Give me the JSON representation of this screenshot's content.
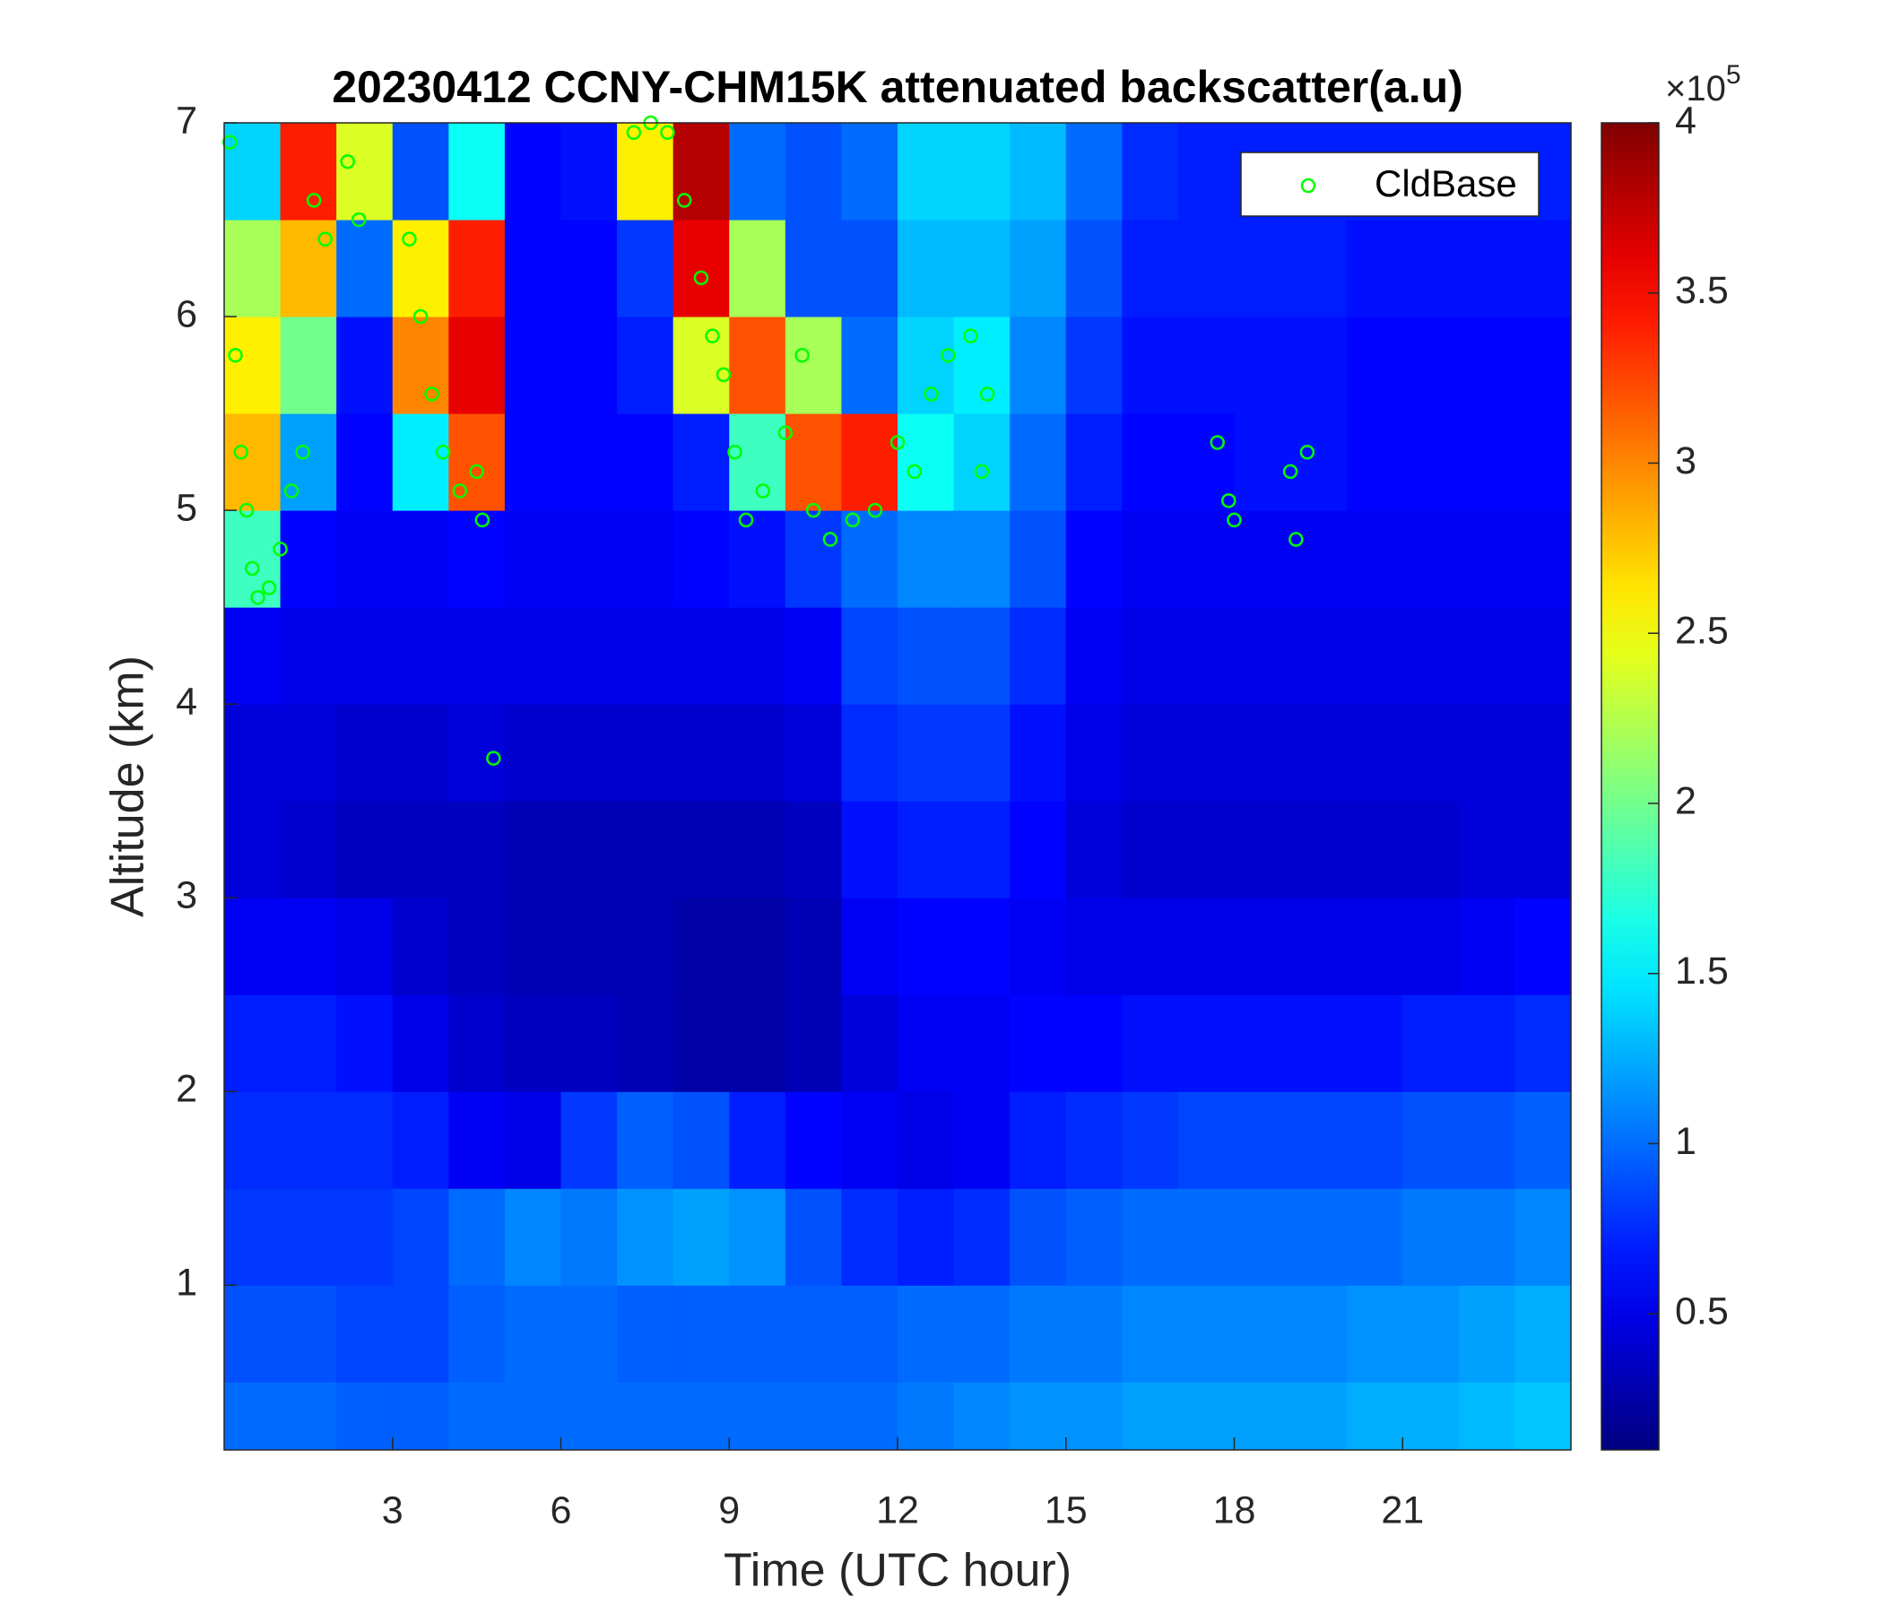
{
  "chart_data": {
    "type": "heatmap",
    "title": "20230412 CCNY-CHM15K attenuated backscatter(a.u)",
    "xlabel": "Time (UTC hour)",
    "ylabel": "Altitude (km)",
    "xlim": [
      0,
      24
    ],
    "ylim": [
      0.15,
      7
    ],
    "xticks": [
      3,
      6,
      9,
      12,
      15,
      18,
      21
    ],
    "yticks": [
      1,
      2,
      3,
      4,
      5,
      6,
      7
    ],
    "colormap": "jet",
    "clim": [
      0.1,
      4
    ],
    "cticks": [
      0.5,
      1,
      1.5,
      2,
      2.5,
      3,
      3.5,
      4
    ],
    "colorbar_multiplier": "×10",
    "colorbar_exponent": "5",
    "legend": "top-right",
    "xbins": [
      0,
      1,
      2,
      3,
      4,
      5,
      6,
      7,
      8,
      9,
      10,
      11,
      12,
      13,
      14,
      15,
      16,
      17,
      18,
      19,
      20,
      21,
      22,
      23,
      24
    ],
    "ybins": [
      0.15,
      0.5,
      1,
      1.5,
      2,
      2.5,
      3,
      3.5,
      4,
      4.5,
      5,
      5.5,
      6,
      6.5,
      7
    ],
    "z": [
      [
        1.0,
        1.0,
        0.95,
        0.95,
        1.0,
        1.0,
        1.0,
        1.0,
        1.0,
        1.0,
        1.0,
        1.0,
        1.05,
        1.1,
        1.15,
        1.15,
        1.2,
        1.2,
        1.2,
        1.2,
        1.25,
        1.25,
        1.3,
        1.35
      ],
      [
        0.9,
        0.9,
        0.85,
        0.85,
        0.95,
        1.0,
        1.0,
        0.95,
        0.95,
        0.95,
        0.95,
        0.95,
        1.0,
        1.0,
        1.05,
        1.05,
        1.1,
        1.1,
        1.1,
        1.1,
        1.15,
        1.15,
        1.2,
        1.25
      ],
      [
        0.8,
        0.8,
        0.8,
        0.85,
        1.0,
        1.1,
        1.05,
        1.15,
        1.2,
        1.15,
        0.9,
        0.75,
        0.7,
        0.75,
        0.9,
        0.95,
        1.0,
        1.0,
        1.0,
        1.0,
        1.0,
        1.05,
        1.05,
        1.1
      ],
      [
        0.75,
        0.75,
        0.75,
        0.7,
        0.55,
        0.5,
        0.8,
        0.95,
        0.9,
        0.7,
        0.6,
        0.55,
        0.5,
        0.55,
        0.7,
        0.75,
        0.8,
        0.85,
        0.85,
        0.85,
        0.85,
        0.9,
        0.9,
        0.95
      ],
      [
        0.7,
        0.7,
        0.65,
        0.5,
        0.4,
        0.35,
        0.35,
        0.3,
        0.25,
        0.25,
        0.3,
        0.45,
        0.55,
        0.55,
        0.6,
        0.6,
        0.65,
        0.65,
        0.65,
        0.65,
        0.65,
        0.7,
        0.7,
        0.75
      ],
      [
        0.55,
        0.55,
        0.5,
        0.4,
        0.35,
        0.3,
        0.3,
        0.3,
        0.25,
        0.25,
        0.3,
        0.55,
        0.6,
        0.6,
        0.55,
        0.5,
        0.5,
        0.5,
        0.5,
        0.5,
        0.5,
        0.5,
        0.55,
        0.6
      ],
      [
        0.45,
        0.4,
        0.35,
        0.35,
        0.35,
        0.3,
        0.3,
        0.3,
        0.3,
        0.3,
        0.35,
        0.65,
        0.7,
        0.7,
        0.6,
        0.45,
        0.4,
        0.4,
        0.4,
        0.4,
        0.4,
        0.4,
        0.45,
        0.45
      ],
      [
        0.45,
        0.45,
        0.4,
        0.4,
        0.45,
        0.4,
        0.4,
        0.4,
        0.4,
        0.4,
        0.45,
        0.75,
        0.8,
        0.8,
        0.65,
        0.5,
        0.45,
        0.45,
        0.45,
        0.45,
        0.45,
        0.45,
        0.45,
        0.45
      ],
      [
        0.55,
        0.5,
        0.5,
        0.5,
        0.5,
        0.5,
        0.5,
        0.5,
        0.5,
        0.5,
        0.55,
        0.85,
        0.9,
        0.9,
        0.75,
        0.55,
        0.5,
        0.5,
        0.5,
        0.5,
        0.5,
        0.5,
        0.5,
        0.5
      ],
      [
        1.8,
        0.6,
        0.55,
        0.55,
        0.6,
        0.55,
        0.55,
        0.55,
        0.6,
        0.65,
        0.8,
        1.0,
        1.1,
        1.1,
        0.9,
        0.6,
        0.55,
        0.55,
        0.55,
        0.55,
        0.55,
        0.55,
        0.55,
        0.55
      ],
      [
        2.8,
        1.2,
        0.6,
        1.5,
        3.2,
        0.6,
        0.6,
        0.6,
        0.7,
        1.8,
        3.2,
        3.4,
        1.6,
        1.4,
        1.0,
        0.7,
        0.6,
        0.6,
        0.65,
        0.65,
        0.6,
        0.6,
        0.6,
        0.6
      ],
      [
        2.6,
        2.0,
        0.65,
        3.0,
        3.6,
        0.6,
        0.6,
        0.7,
        2.4,
        3.2,
        2.2,
        1.0,
        1.4,
        1.5,
        1.1,
        0.8,
        0.65,
        0.65,
        0.65,
        0.65,
        0.6,
        0.6,
        0.6,
        0.6
      ],
      [
        2.2,
        2.8,
        1.0,
        2.6,
        3.4,
        0.6,
        0.6,
        0.8,
        3.6,
        2.2,
        0.9,
        0.9,
        1.3,
        1.3,
        1.2,
        0.9,
        0.7,
        0.7,
        0.7,
        0.7,
        0.65,
        0.65,
        0.65,
        0.65
      ],
      [
        1.4,
        3.4,
        2.4,
        0.9,
        1.6,
        0.6,
        0.65,
        2.6,
        3.8,
        1.0,
        0.9,
        1.0,
        1.4,
        1.4,
        1.3,
        1.0,
        0.75,
        0.7,
        0.7,
        0.7,
        0.7,
        0.7,
        0.7,
        0.7
      ]
    ],
    "series": [
      {
        "name": "CldBase",
        "color": "#00ff00",
        "x": [
          0.1,
          0.2,
          0.3,
          0.4,
          0.5,
          0.6,
          0.8,
          1.0,
          1.2,
          1.4,
          1.6,
          1.8,
          2.2,
          2.4,
          3.3,
          3.5,
          3.7,
          3.9,
          4.2,
          4.5,
          4.6,
          4.8,
          7.3,
          7.6,
          7.9,
          8.2,
          8.5,
          8.7,
          8.9,
          9.1,
          9.3,
          9.6,
          10.0,
          10.3,
          10.5,
          10.8,
          11.2,
          11.6,
          12.0,
          12.3,
          12.6,
          12.9,
          13.3,
          13.6,
          13.5,
          17.7,
          17.9,
          18.0,
          19.0,
          19.1,
          19.3
        ],
        "y": [
          6.9,
          5.8,
          5.3,
          5.0,
          4.7,
          4.55,
          4.6,
          4.8,
          5.1,
          5.3,
          6.6,
          6.4,
          6.8,
          6.5,
          6.4,
          6.0,
          5.6,
          5.3,
          5.1,
          5.2,
          4.95,
          3.72,
          6.95,
          7.0,
          6.95,
          6.6,
          6.2,
          5.9,
          5.7,
          5.3,
          4.95,
          5.1,
          5.4,
          5.8,
          5.0,
          4.85,
          4.95,
          5.0,
          5.35,
          5.2,
          5.6,
          5.8,
          5.9,
          5.6,
          5.2,
          5.35,
          5.05,
          4.95,
          5.2,
          4.85,
          5.3
        ]
      }
    ]
  }
}
